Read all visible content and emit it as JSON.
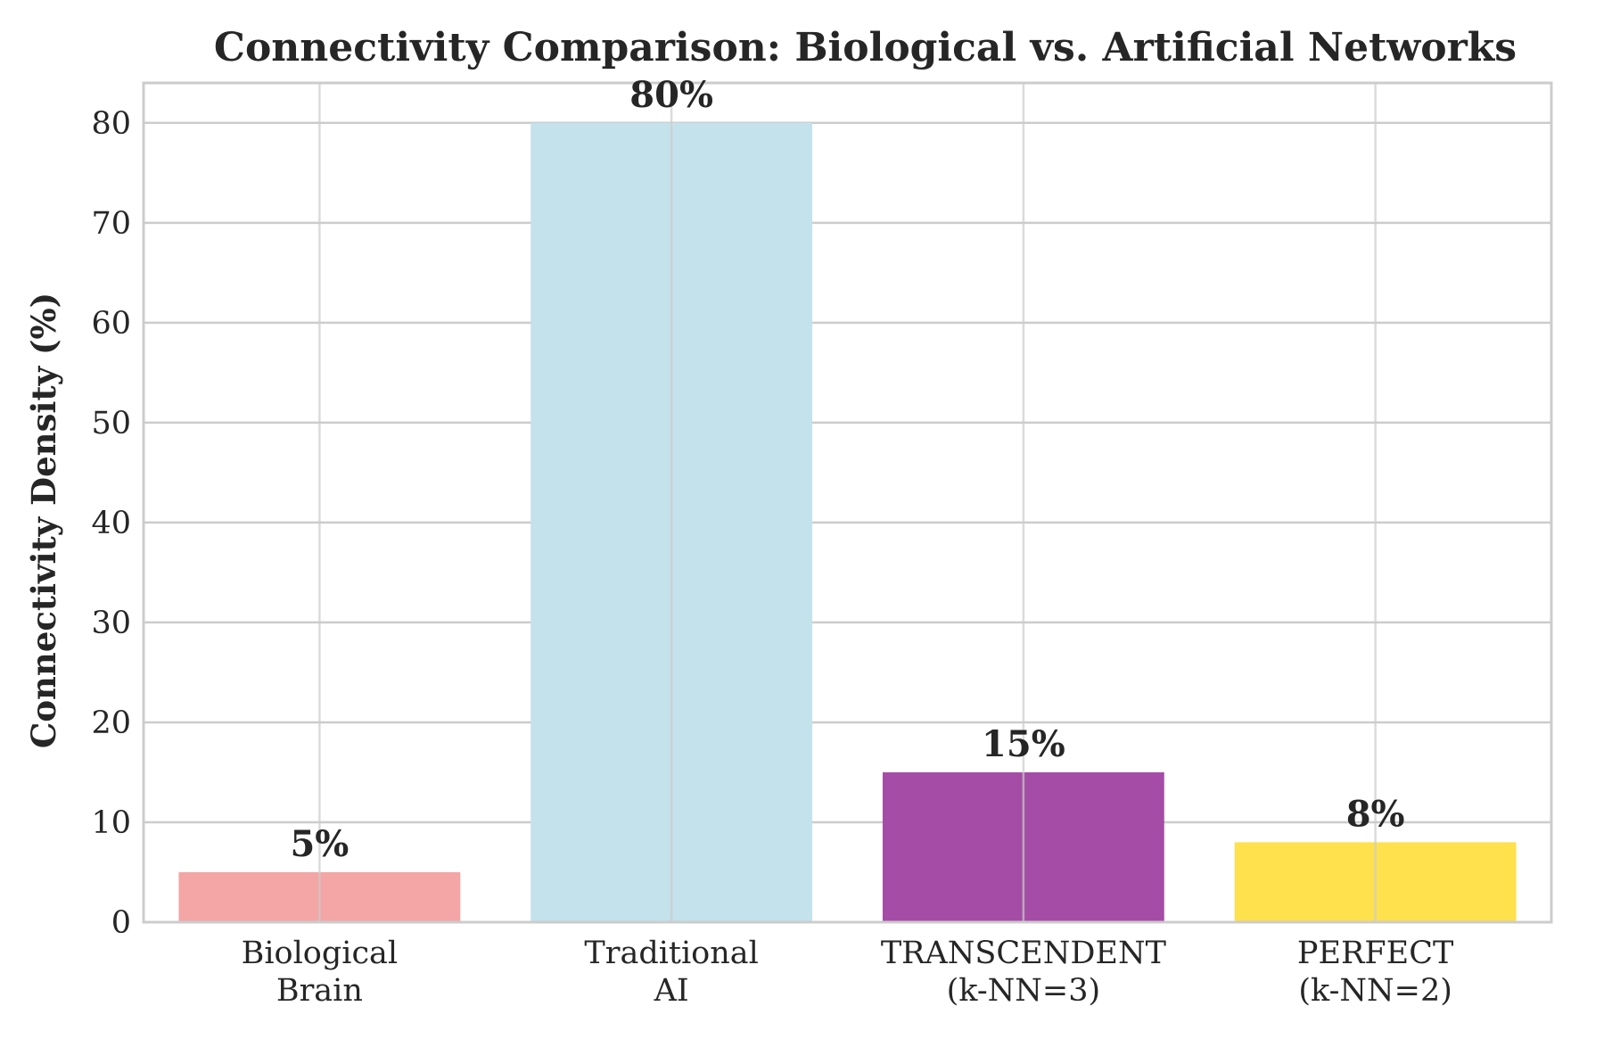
{
  "chart_data": {
    "type": "bar",
    "title": "Connectivity Comparison: Biological vs. Artificial Networks",
    "xlabel": "",
    "ylabel": "Connectivity Density (%)",
    "categories": [
      [
        "Biological",
        "Brain"
      ],
      [
        "Traditional",
        "AI"
      ],
      [
        "TRANSCENDENT",
        "(k-NN=3)"
      ],
      [
        "PERFECT",
        "(k-NN=2)"
      ]
    ],
    "values": [
      5,
      80,
      15,
      8
    ],
    "data_labels": [
      "5%",
      "80%",
      "15%",
      "8%"
    ],
    "colors": [
      "#f4a5a5",
      "#c4e2ec",
      "#a44ca6",
      "#ffe04d"
    ],
    "ylim": [
      0,
      84
    ],
    "yticks": [
      0,
      10,
      20,
      30,
      40,
      50,
      60,
      70,
      80
    ],
    "grid": true
  }
}
